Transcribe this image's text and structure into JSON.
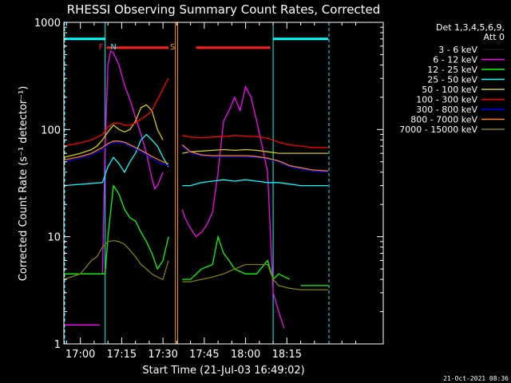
{
  "chart_data": {
    "type": "line",
    "title": "RHESSI Observing Summary Count Rates, Corrected",
    "xlabel": "Start Time (21-Jul-03 16:49:02)",
    "ylabel": "Corrected Count Rate (s⁻¹ detector⁻¹)",
    "yscale": "log",
    "ylim": [
      1,
      1000
    ],
    "xlim_minutes": [
      -6,
      110
    ],
    "x_ticks": [
      {
        "m": 0,
        "label": "17:00"
      },
      {
        "m": 15,
        "label": "17:15"
      },
      {
        "m": 30,
        "label": "17:30"
      },
      {
        "m": 45,
        "label": "17:45"
      },
      {
        "m": 60,
        "label": "18:00"
      },
      {
        "m": 75,
        "label": "18:15"
      }
    ],
    "y_ticks": [
      {
        "v": 1,
        "label": "1"
      },
      {
        "v": 10,
        "label": "10"
      },
      {
        "v": 100,
        "label": "100"
      },
      {
        "v": 1000,
        "label": "1000"
      }
    ],
    "legend_header": [
      "Det 1,3,4,5,6,9,",
      "Att 0"
    ],
    "legend_position": "right",
    "footer": "21-Oct-2021 08:36",
    "flags": {
      "cyan_level": 700,
      "cyan_segments": [
        [
          -6,
          9
        ],
        [
          70,
          90
        ]
      ],
      "cyan_vlines": [
        9,
        70
      ],
      "cyan_dashed": [
        -6,
        90
      ],
      "red_segments": [
        [
          9.5,
          32
        ],
        [
          42,
          69
        ]
      ],
      "red_level": 580,
      "markers": [
        {
          "label": "F",
          "m": 7.5,
          "color": "#ff2020"
        },
        {
          "label": "N",
          "m": 12,
          "color": "#00ffff"
        },
        {
          "label": "S",
          "m": 33.5,
          "color": "#ff9900"
        }
      ],
      "orange_vlines": [
        34.5,
        35.3
      ]
    },
    "series": [
      {
        "name": "3 - 6 keV",
        "color": "#000000",
        "points": [
          [
            -6,
            null
          ]
        ]
      },
      {
        "name": "6 - 12 keV",
        "color": "#ff00ff",
        "points": [
          [
            -6,
            1.5
          ],
          [
            6,
            1.5
          ],
          [
            6,
            1.5
          ],
          [
            7,
            1.5
          ],
          [
            7,
            null
          ],
          [
            8,
            4.5
          ],
          [
            9,
            70
          ],
          [
            10,
            400
          ],
          [
            11,
            540
          ],
          [
            12,
            520
          ],
          [
            14,
            400
          ],
          [
            16,
            260
          ],
          [
            18,
            190
          ],
          [
            20,
            130
          ],
          [
            22,
            90
          ],
          [
            24,
            60
          ],
          [
            26,
            35
          ],
          [
            27,
            28
          ],
          [
            28,
            30
          ],
          [
            30,
            40
          ],
          [
            31,
            null
          ],
          [
            37,
            18
          ],
          [
            38,
            15
          ],
          [
            40,
            12
          ],
          [
            42,
            10
          ],
          [
            44,
            11
          ],
          [
            46,
            13
          ],
          [
            48,
            17
          ],
          [
            50,
            40
          ],
          [
            52,
            120
          ],
          [
            54,
            150
          ],
          [
            56,
            200
          ],
          [
            58,
            150
          ],
          [
            60,
            250
          ],
          [
            62,
            200
          ],
          [
            64,
            120
          ],
          [
            66,
            70
          ],
          [
            68,
            40
          ],
          [
            70,
            3
          ],
          [
            72,
            2
          ],
          [
            74,
            1.4
          ],
          [
            75,
            null
          ]
        ]
      },
      {
        "name": "12 - 25 keV",
        "color": "#00ff00",
        "points": [
          [
            -6,
            4.5
          ],
          [
            9,
            4.5
          ],
          [
            10,
            10
          ],
          [
            12,
            30
          ],
          [
            14,
            25
          ],
          [
            16,
            18
          ],
          [
            18,
            15
          ],
          [
            20,
            14
          ],
          [
            22,
            11
          ],
          [
            24,
            9
          ],
          [
            26,
            7
          ],
          [
            28,
            5
          ],
          [
            30,
            6
          ],
          [
            32,
            10
          ],
          [
            33,
            null
          ],
          [
            37,
            4
          ],
          [
            40,
            4
          ],
          [
            44,
            5
          ],
          [
            48,
            5.5
          ],
          [
            50,
            10
          ],
          [
            52,
            7
          ],
          [
            54,
            6
          ],
          [
            56,
            5
          ],
          [
            60,
            4.5
          ],
          [
            64,
            4.5
          ],
          [
            68,
            6
          ],
          [
            70,
            4
          ],
          [
            72,
            4.5
          ],
          [
            76,
            4
          ],
          [
            78,
            null
          ],
          [
            80,
            3.5
          ],
          [
            84,
            3.5
          ],
          [
            90,
            3.5
          ]
        ]
      },
      {
        "name": "25 - 50 keV",
        "color": "#00ffff",
        "points": [
          [
            -6,
            30
          ],
          [
            8,
            32
          ],
          [
            10,
            45
          ],
          [
            12,
            55
          ],
          [
            14,
            48
          ],
          [
            16,
            40
          ],
          [
            18,
            50
          ],
          [
            20,
            60
          ],
          [
            22,
            80
          ],
          [
            24,
            90
          ],
          [
            26,
            80
          ],
          [
            28,
            70
          ],
          [
            30,
            55
          ],
          [
            32,
            45
          ],
          [
            33,
            null
          ],
          [
            37,
            30
          ],
          [
            40,
            30
          ],
          [
            44,
            32
          ],
          [
            48,
            33
          ],
          [
            52,
            34
          ],
          [
            56,
            33
          ],
          [
            60,
            34
          ],
          [
            64,
            33
          ],
          [
            68,
            32
          ],
          [
            72,
            32
          ],
          [
            76,
            31
          ],
          [
            80,
            30
          ],
          [
            84,
            30
          ],
          [
            90,
            30
          ]
        ]
      },
      {
        "name": "50 - 100 keV",
        "color": "#d0d000",
        "points": [
          [
            -6,
            55
          ],
          [
            0,
            60
          ],
          [
            4,
            65
          ],
          [
            6,
            70
          ],
          [
            8,
            80
          ],
          [
            10,
            95
          ],
          [
            12,
            110
          ],
          [
            14,
            100
          ],
          [
            16,
            95
          ],
          [
            18,
            100
          ],
          [
            20,
            120
          ],
          [
            22,
            160
          ],
          [
            24,
            170
          ],
          [
            26,
            150
          ],
          [
            28,
            100
          ],
          [
            30,
            80
          ],
          [
            31,
            null
          ],
          [
            37,
            60
          ],
          [
            40,
            62
          ],
          [
            44,
            63
          ],
          [
            48,
            64
          ],
          [
            52,
            65
          ],
          [
            56,
            64
          ],
          [
            60,
            65
          ],
          [
            64,
            64
          ],
          [
            68,
            62
          ],
          [
            72,
            60
          ],
          [
            76,
            60
          ],
          [
            80,
            60
          ],
          [
            84,
            60
          ],
          [
            90,
            60
          ]
        ]
      },
      {
        "name": "100 - 300 keV",
        "color": "#ff0000",
        "points": [
          [
            -6,
            70
          ],
          [
            0,
            75
          ],
          [
            4,
            80
          ],
          [
            8,
            90
          ],
          [
            10,
            105
          ],
          [
            12,
            115
          ],
          [
            14,
            115
          ],
          [
            16,
            110
          ],
          [
            18,
            110
          ],
          [
            20,
            115
          ],
          [
            22,
            125
          ],
          [
            24,
            135
          ],
          [
            26,
            150
          ],
          [
            28,
            190
          ],
          [
            30,
            240
          ],
          [
            32,
            300
          ],
          [
            33,
            null
          ],
          [
            37,
            88
          ],
          [
            40,
            85
          ],
          [
            44,
            84
          ],
          [
            48,
            85
          ],
          [
            52,
            86
          ],
          [
            56,
            88
          ],
          [
            60,
            87
          ],
          [
            64,
            86
          ],
          [
            68,
            83
          ],
          [
            70,
            80
          ],
          [
            72,
            76
          ],
          [
            76,
            72
          ],
          [
            80,
            70
          ],
          [
            84,
            68
          ],
          [
            90,
            68
          ]
        ]
      },
      {
        "name": "300 - 800 keV",
        "color": "#0000ff",
        "points": [
          [
            -6,
            50
          ],
          [
            0,
            54
          ],
          [
            4,
            58
          ],
          [
            8,
            65
          ],
          [
            10,
            72
          ],
          [
            12,
            76
          ],
          [
            14,
            76
          ],
          [
            16,
            74
          ],
          [
            18,
            70
          ],
          [
            20,
            66
          ],
          [
            22,
            62
          ],
          [
            24,
            58
          ],
          [
            26,
            54
          ],
          [
            28,
            50
          ],
          [
            30,
            48
          ],
          [
            32,
            46
          ],
          [
            33,
            null
          ],
          [
            37,
            70
          ],
          [
            40,
            60
          ],
          [
            44,
            57
          ],
          [
            48,
            56
          ],
          [
            52,
            56
          ],
          [
            56,
            56
          ],
          [
            60,
            56
          ],
          [
            64,
            55
          ],
          [
            68,
            53
          ],
          [
            72,
            50
          ],
          [
            76,
            45
          ],
          [
            80,
            43
          ],
          [
            84,
            41
          ],
          [
            90,
            40
          ]
        ]
      },
      {
        "name": "800 - 7000 keV",
        "color": "#ff8000",
        "points": [
          [
            -6,
            52
          ],
          [
            0,
            56
          ],
          [
            4,
            60
          ],
          [
            8,
            68
          ],
          [
            10,
            74
          ],
          [
            12,
            78
          ],
          [
            14,
            78
          ],
          [
            16,
            76
          ],
          [
            18,
            72
          ],
          [
            20,
            68
          ],
          [
            22,
            64
          ],
          [
            24,
            60
          ],
          [
            26,
            56
          ],
          [
            28,
            53
          ],
          [
            30,
            50
          ],
          [
            32,
            48
          ],
          [
            33,
            null
          ],
          [
            37,
            72
          ],
          [
            40,
            62
          ],
          [
            44,
            58
          ],
          [
            48,
            57
          ],
          [
            52,
            57
          ],
          [
            56,
            57
          ],
          [
            60,
            57
          ],
          [
            64,
            56
          ],
          [
            68,
            54
          ],
          [
            72,
            51
          ],
          [
            76,
            46
          ],
          [
            80,
            44
          ],
          [
            84,
            42
          ],
          [
            90,
            41
          ]
        ]
      },
      {
        "name": "7000 - 15000 keV",
        "color": "#808000",
        "points": [
          [
            -6,
            4
          ],
          [
            0,
            4.5
          ],
          [
            4,
            6
          ],
          [
            6,
            6.5
          ],
          [
            8,
            8
          ],
          [
            10,
            9
          ],
          [
            12,
            9.2
          ],
          [
            14,
            9
          ],
          [
            16,
            8.5
          ],
          [
            18,
            7.5
          ],
          [
            20,
            6.5
          ],
          [
            22,
            5.5
          ],
          [
            24,
            5
          ],
          [
            26,
            4.5
          ],
          [
            28,
            4.2
          ],
          [
            30,
            4
          ],
          [
            32,
            6
          ],
          [
            33,
            null
          ],
          [
            37,
            3.8
          ],
          [
            40,
            3.8
          ],
          [
            44,
            4
          ],
          [
            48,
            4.2
          ],
          [
            52,
            4.5
          ],
          [
            56,
            5
          ],
          [
            60,
            5.5
          ],
          [
            64,
            5.5
          ],
          [
            68,
            5.5
          ],
          [
            70,
            4
          ],
          [
            72,
            3.5
          ],
          [
            76,
            3.3
          ],
          [
            80,
            3.2
          ],
          [
            84,
            3.2
          ],
          [
            90,
            3.2
          ]
        ]
      }
    ]
  }
}
